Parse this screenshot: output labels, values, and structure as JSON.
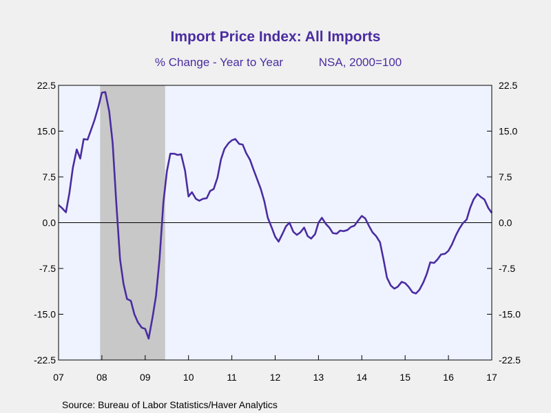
{
  "chart_data": {
    "type": "line",
    "title": "Import Price Index: All Imports",
    "subtitle": "% Change - Year to Year",
    "subtitle_right": "NSA, 2000=100",
    "source": "Source:  Bureau of Labor Statistics/Haver Analytics",
    "ylim": [
      -22.5,
      22.5
    ],
    "y_ticks": [
      "22.5",
      "15.0",
      "7.5",
      "0.0",
      "-7.5",
      "-15.0",
      "-22.5"
    ],
    "xlim": [
      2007.0,
      2017.0
    ],
    "x_ticks": [
      "07",
      "08",
      "09",
      "10",
      "11",
      "12",
      "13",
      "14",
      "15",
      "16",
      "17"
    ],
    "recession": {
      "start": 2007.96,
      "end": 2009.46
    },
    "zero_line": true,
    "colors": {
      "line": "#4a2ca0",
      "title": "#4a2ca0",
      "plot_background": "#eef3ff",
      "recession_shade": "#c8c8c8",
      "page_background": "#f0f0f0"
    },
    "series": [
      {
        "x": [
          2007.0,
          2007.08,
          2007.17,
          2007.25,
          2007.33,
          2007.42,
          2007.5,
          2007.58,
          2007.67,
          2007.75,
          2007.83,
          2007.92,
          2008.0,
          2008.08,
          2008.17,
          2008.25,
          2008.33,
          2008.42,
          2008.5,
          2008.58,
          2008.67,
          2008.75,
          2008.83,
          2008.92,
          2009.0,
          2009.08,
          2009.17,
          2009.25,
          2009.33,
          2009.42,
          2009.5,
          2009.58,
          2009.67,
          2009.75,
          2009.83,
          2009.92,
          2010.0,
          2010.08,
          2010.17,
          2010.25,
          2010.33,
          2010.42,
          2010.5,
          2010.58,
          2010.67,
          2010.75,
          2010.83,
          2010.92,
          2011.0,
          2011.08,
          2011.17,
          2011.25,
          2011.33,
          2011.42,
          2011.5,
          2011.58,
          2011.67,
          2011.75,
          2011.83,
          2011.92,
          2012.0,
          2012.08,
          2012.17,
          2012.25,
          2012.33,
          2012.42,
          2012.5,
          2012.58,
          2012.67,
          2012.75,
          2012.83,
          2012.92,
          2013.0,
          2013.08,
          2013.17,
          2013.25,
          2013.33,
          2013.42,
          2013.5,
          2013.58,
          2013.67,
          2013.75,
          2013.83,
          2013.92,
          2014.0,
          2014.08,
          2014.17,
          2014.25,
          2014.33,
          2014.42,
          2014.5,
          2014.58,
          2014.67,
          2014.75,
          2014.83,
          2014.92,
          2015.0,
          2015.08,
          2015.17,
          2015.25,
          2015.33,
          2015.42,
          2015.5,
          2015.58,
          2015.67,
          2015.75,
          2015.83,
          2015.92,
          2016.0,
          2016.08,
          2016.17,
          2016.25,
          2016.33,
          2016.42,
          2016.5,
          2016.58,
          2016.67,
          2016.75,
          2016.83,
          2016.92,
          2017.0
        ],
        "y": [
          2.9,
          2.4,
          1.7,
          4.8,
          9.0,
          12.0,
          10.5,
          13.7,
          13.6,
          15.2,
          16.8,
          19.0,
          21.3,
          21.4,
          18.2,
          13.0,
          3.5,
          -6.0,
          -10.0,
          -12.5,
          -12.8,
          -15.0,
          -16.3,
          -17.2,
          -17.4,
          -19.0,
          -15.5,
          -12.0,
          -6.0,
          3.3,
          8.4,
          11.3,
          11.3,
          11.1,
          11.2,
          8.5,
          4.3,
          5.0,
          3.9,
          3.6,
          3.9,
          4.0,
          5.2,
          5.5,
          7.4,
          10.4,
          12.1,
          13.0,
          13.5,
          13.7,
          12.9,
          12.8,
          11.4,
          10.3,
          8.7,
          7.2,
          5.5,
          3.5,
          0.8,
          -0.8,
          -2.3,
          -3.1,
          -1.8,
          -0.6,
          0.0,
          -1.5,
          -2.0,
          -1.6,
          -0.8,
          -2.2,
          -2.6,
          -1.9,
          0.0,
          0.8,
          -0.2,
          -0.8,
          -1.7,
          -1.8,
          -1.3,
          -1.4,
          -1.2,
          -0.7,
          -0.5,
          0.4,
          1.1,
          0.7,
          -0.6,
          -1.6,
          -2.2,
          -3.2,
          -6.0,
          -9.0,
          -10.3,
          -10.8,
          -10.5,
          -9.7,
          -9.9,
          -10.5,
          -11.4,
          -11.6,
          -11.0,
          -9.8,
          -8.4,
          -6.5,
          -6.6,
          -6.0,
          -5.2,
          -5.1,
          -4.6,
          -3.6,
          -2.1,
          -1.0,
          -0.1,
          0.5,
          2.4,
          3.8,
          4.7,
          4.2,
          3.8,
          2.4,
          1.6
        ]
      }
    ]
  }
}
